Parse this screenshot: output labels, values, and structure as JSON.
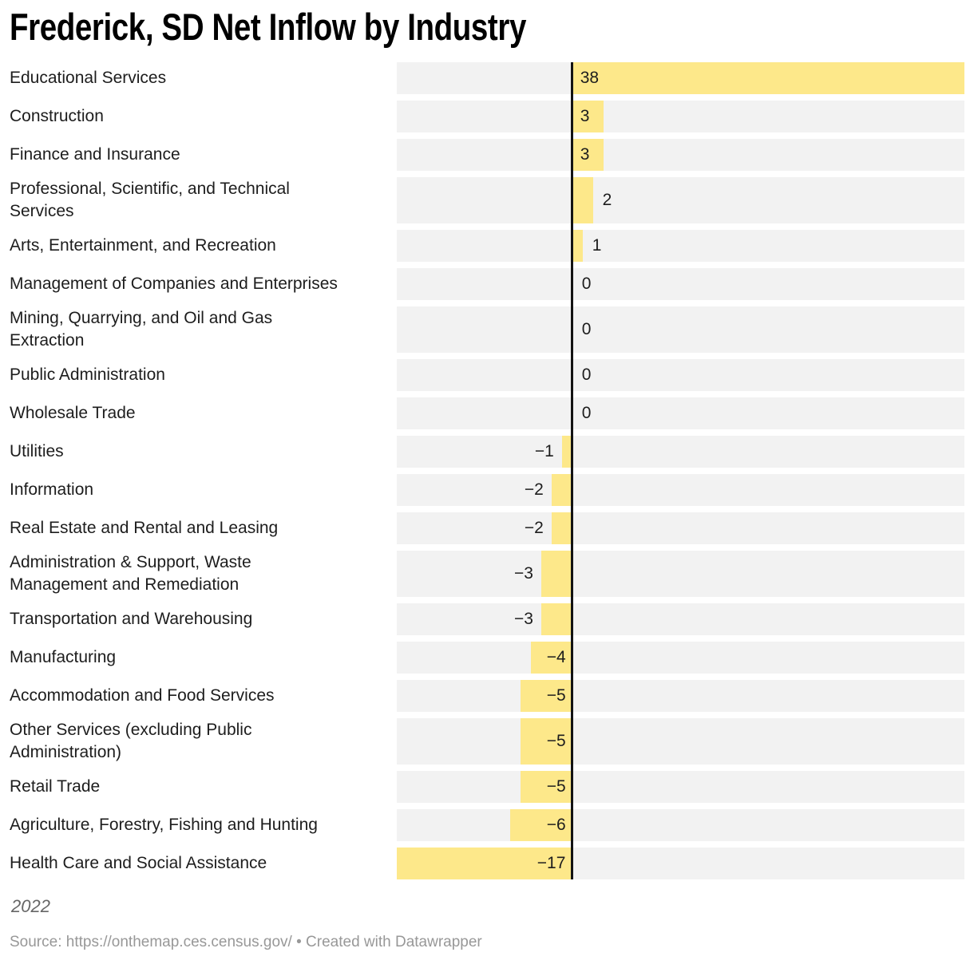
{
  "title": "Frederick, SD Net Inflow by Industry",
  "note": "2022",
  "source": {
    "prefix": "Source: ",
    "url_text": "https://onthemap.ces.census.gov/",
    "separator": " • Created with ",
    "tool": "Datawrapper"
  },
  "colors": {
    "bar": "#FDE88A",
    "track": "#F2F2F2",
    "baseline": "#131313",
    "title": "#000000",
    "label": "#1D1D1D",
    "value": "#1D1D1D",
    "note": "#666666",
    "source": "#989898"
  },
  "chart_data": {
    "type": "bar",
    "orientation": "horizontal",
    "title": "Frederick, SD Net Inflow by Industry",
    "note": "2022",
    "axis_min": -17,
    "axis_max": 38,
    "grid": false,
    "legend": false,
    "categories": [
      "Educational Services",
      "Construction",
      "Finance and Insurance",
      "Professional, Scientific, and Technical\nServices",
      "Arts, Entertainment, and Recreation",
      "Management of Companies and Enterprises",
      "Mining, Quarrying, and Oil and Gas\nExtraction",
      "Public Administration",
      "Wholesale Trade",
      "Utilities",
      "Information",
      "Real Estate and Rental and Leasing",
      "Administration & Support, Waste\nManagement and Remediation",
      "Transportation and Warehousing",
      "Manufacturing",
      "Accommodation and Food Services",
      "Other Services (excluding Public\nAdministration)",
      "Retail Trade",
      "Agriculture, Forestry, Fishing and Hunting",
      "Health Care and Social Assistance"
    ],
    "values": [
      38,
      3,
      3,
      2,
      1,
      0,
      0,
      0,
      0,
      -1,
      -2,
      -2,
      -3,
      -3,
      -4,
      -5,
      -5,
      -5,
      -6,
      -17
    ],
    "value_labels": [
      "38",
      "3",
      "3",
      "2",
      "1",
      "0",
      "0",
      "0",
      "0",
      "−1",
      "−2",
      "−2",
      "−3",
      "−3",
      "−4",
      "−5",
      "−5",
      "−5",
      "−6",
      "−17"
    ]
  }
}
